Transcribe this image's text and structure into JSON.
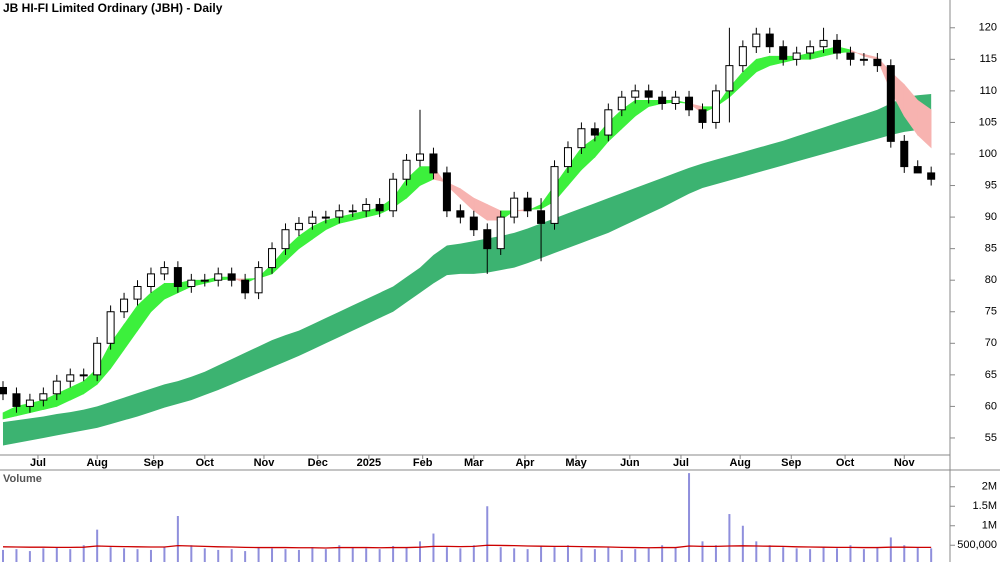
{
  "chart_data": [
    {
      "type": "candlestick",
      "title": "JB HI-FI Limited Ordinary (JBH) - Daily",
      "x": [
        0,
        5,
        10,
        15,
        20,
        25,
        30,
        35,
        40,
        45,
        50,
        55,
        60,
        65,
        70,
        75,
        80,
        85,
        90,
        95,
        100,
        105,
        110,
        115,
        120,
        125,
        130,
        135,
        140,
        145,
        150,
        155,
        160,
        165,
        170,
        175,
        180,
        185,
        190,
        195,
        200,
        205,
        210,
        215,
        220,
        225,
        230,
        235,
        240,
        245,
        250,
        255,
        260,
        265,
        270,
        275,
        280,
        285,
        290,
        295,
        300,
        305,
        310,
        315,
        320,
        325,
        330,
        335,
        340,
        345
      ],
      "open": [
        63,
        62,
        60,
        61,
        62,
        64,
        65,
        65,
        70,
        75,
        77,
        79,
        81,
        82,
        79,
        80,
        80,
        81,
        80,
        78,
        82,
        85,
        88,
        89,
        90,
        90,
        91,
        91,
        92,
        91,
        96,
        99,
        100,
        97,
        91,
        90,
        88,
        85,
        90,
        93,
        91,
        89,
        98,
        101,
        104,
        103,
        107,
        109,
        110,
        109,
        108,
        109,
        107,
        105,
        110,
        114,
        117,
        119,
        117,
        115,
        116,
        117,
        118,
        116,
        115,
        115,
        114,
        102,
        98,
        97
      ],
      "high": [
        64,
        63,
        62,
        63,
        65,
        66,
        66,
        71,
        76,
        78,
        80,
        82,
        83,
        83,
        81,
        81,
        82,
        82,
        81,
        83,
        86,
        89,
        90,
        91,
        91,
        92,
        92,
        93,
        93,
        97,
        100,
        107,
        101,
        98,
        92,
        91,
        89,
        91,
        94,
        94,
        93,
        99,
        102,
        105,
        105,
        108,
        110,
        111,
        111,
        110,
        110,
        110,
        108,
        111,
        120,
        118,
        120,
        120,
        118,
        117,
        118,
        120,
        119,
        117,
        116,
        116,
        115,
        103,
        99,
        98
      ],
      "low": [
        61,
        59,
        59,
        60,
        61,
        63,
        64,
        64,
        69,
        74,
        76,
        78,
        80,
        78,
        78,
        79,
        79,
        79,
        77,
        77,
        81,
        84,
        87,
        88,
        89,
        89,
        90,
        90,
        90,
        90,
        95,
        98,
        96,
        90,
        89,
        87,
        81,
        84,
        89,
        90,
        83,
        88,
        97,
        100,
        102,
        102,
        106,
        108,
        108,
        107,
        107,
        106,
        104,
        104,
        105,
        113,
        116,
        116,
        114,
        114,
        115,
        116,
        115,
        114,
        114,
        113,
        101,
        97,
        97,
        95
      ],
      "close": [
        62,
        60,
        61,
        62,
        64,
        65,
        65,
        70,
        75,
        77,
        79,
        81,
        82,
        79,
        80,
        80,
        81,
        80,
        78,
        82,
        85,
        88,
        89,
        90,
        90,
        91,
        91,
        92,
        91,
        96,
        99,
        100,
        97,
        91,
        90,
        88,
        85,
        90,
        93,
        91,
        89,
        98,
        101,
        104,
        103,
        107,
        109,
        110,
        109,
        108,
        109,
        107,
        105,
        110,
        114,
        117,
        119,
        117,
        115,
        116,
        117,
        118,
        116,
        115,
        115,
        114,
        102,
        98,
        97,
        96
      ],
      "up_color": "#ffffff",
      "down_color": "#000000",
      "fast_ribbon": {
        "short": [
          59,
          60,
          60.5,
          61,
          62,
          63,
          64,
          66,
          70,
          73,
          76,
          78,
          79.5,
          79.5,
          80,
          80,
          80.5,
          80.5,
          79.5,
          80.5,
          82.5,
          85,
          87,
          88.5,
          89.5,
          90,
          90.5,
          91,
          91.5,
          93,
          96,
          98,
          98,
          95,
          93,
          91,
          89.5,
          89.5,
          91,
          91,
          92,
          95,
          98,
          101,
          102.5,
          105,
          107,
          108.5,
          108.5,
          108.5,
          108.5,
          108,
          106.5,
          107.5,
          110.5,
          113,
          115,
          115.5,
          115.5,
          115.5,
          116,
          116.5,
          117,
          116.5,
          115.5,
          115,
          110,
          106,
          103,
          101
        ],
        "long": [
          58,
          58.5,
          59,
          59.5,
          60,
          61,
          62,
          63.5,
          66,
          69,
          72,
          75,
          77,
          78,
          79,
          79.5,
          80,
          80.2,
          80.2,
          80.3,
          81,
          83,
          85,
          86.5,
          88,
          89,
          89.5,
          90,
          90.5,
          91.5,
          93,
          95,
          96,
          95.5,
          94.5,
          93,
          92,
          91,
          91,
          91.2,
          91.3,
          92.5,
          95,
          97.5,
          99.5,
          102,
          104,
          106,
          107.5,
          108,
          108.2,
          108,
          107.5,
          107.5,
          109,
          111,
          113,
          114,
          114.5,
          115,
          115,
          115.5,
          116,
          116.2,
          115.8,
          115.3,
          113,
          111,
          108.5,
          107
        ],
        "up_color": "#3cf03c",
        "down_color": "#f7b3b0"
      },
      "slow_ribbon": {
        "upper": [
          57.5,
          57.8,
          58.1,
          58.4,
          58.8,
          59.1,
          59.5,
          60,
          60.7,
          61.4,
          62.1,
          62.8,
          63.5,
          64,
          64.7,
          65.5,
          66.5,
          67.5,
          68.5,
          69.5,
          70.5,
          71.3,
          72,
          73,
          74,
          75,
          76,
          77,
          78,
          79,
          80.5,
          82,
          84,
          85.5,
          85.8,
          86.2,
          86.6,
          87,
          87.5,
          88.2,
          89,
          89.8,
          90.6,
          91.4,
          92.2,
          93,
          93.8,
          94.6,
          95.4,
          96.2,
          97,
          97.8,
          98.5,
          99.1,
          99.7,
          100.3,
          100.9,
          101.5,
          102.1,
          102.8,
          103.5,
          104.2,
          104.9,
          105.6,
          106.3,
          107,
          108,
          109,
          109.3,
          109.5
        ],
        "lower": [
          53.8,
          54.2,
          54.6,
          55,
          55.4,
          55.8,
          56.2,
          56.6,
          57.2,
          57.8,
          58.4,
          59.1,
          59.8,
          60.4,
          61,
          61.8,
          62.6,
          63.5,
          64.4,
          65.3,
          66.2,
          67.1,
          68,
          69,
          70,
          71,
          72,
          73,
          74,
          75,
          76.5,
          78,
          79.5,
          80.8,
          81,
          81,
          81.2,
          81.6,
          82,
          82.7,
          83.5,
          84.3,
          85.1,
          85.9,
          86.7,
          87.5,
          88.5,
          89.5,
          90.5,
          91.5,
          92.6,
          93.7,
          94.6,
          95.2,
          95.8,
          96.4,
          97,
          97.6,
          98.2,
          98.8,
          99.4,
          100,
          100.6,
          101.2,
          101.8,
          102.4,
          103,
          103.5,
          103.8,
          104
        ],
        "color": "#3cb371"
      },
      "xlim": [
        -1.115,
        352
      ],
      "ylim": [
        52.3,
        124.4
      ],
      "xticks": [
        {
          "value": 13,
          "label": "Jul"
        },
        {
          "value": 35,
          "label": "Aug"
        },
        {
          "value": 56,
          "label": "Sep"
        },
        {
          "value": 75,
          "label": "Oct"
        },
        {
          "value": 97,
          "label": "Nov"
        },
        {
          "value": 117,
          "label": "Dec"
        },
        {
          "value": 136,
          "label": "2025"
        },
        {
          "value": 156,
          "label": "Feb"
        },
        {
          "value": 175,
          "label": "Mar"
        },
        {
          "value": 194,
          "label": "Apr"
        },
        {
          "value": 213,
          "label": "May"
        },
        {
          "value": 233,
          "label": "Jun"
        },
        {
          "value": 252,
          "label": "Jul"
        },
        {
          "value": 274,
          "label": "Aug"
        },
        {
          "value": 293,
          "label": "Sep"
        },
        {
          "value": 313,
          "label": "Oct"
        },
        {
          "value": 335,
          "label": "Nov"
        }
      ],
      "yticks": [
        55,
        60,
        65,
        70,
        75,
        80,
        85,
        90,
        95,
        100,
        105,
        110,
        115,
        120
      ]
    },
    {
      "type": "bar",
      "title": "Volume",
      "x": [
        0,
        5,
        10,
        15,
        20,
        25,
        30,
        35,
        40,
        45,
        50,
        55,
        60,
        65,
        70,
        75,
        80,
        85,
        90,
        95,
        100,
        105,
        110,
        115,
        120,
        125,
        130,
        135,
        140,
        145,
        150,
        155,
        160,
        165,
        170,
        175,
        180,
        185,
        190,
        195,
        200,
        205,
        210,
        215,
        220,
        225,
        230,
        235,
        240,
        245,
        250,
        255,
        260,
        265,
        270,
        275,
        280,
        285,
        290,
        295,
        300,
        305,
        310,
        315,
        320,
        325,
        330,
        335,
        340,
        345
      ],
      "values": [
        380000,
        400000,
        350000,
        420000,
        450000,
        400000,
        500000,
        900000,
        450000,
        420000,
        400000,
        380000,
        450000,
        1250000,
        500000,
        420000,
        380000,
        400000,
        350000,
        450000,
        420000,
        400000,
        380000,
        450000,
        400000,
        500000,
        450000,
        420000,
        400000,
        480000,
        450000,
        600000,
        800000,
        450000,
        420000,
        500000,
        1500000,
        450000,
        420000,
        400000,
        480000,
        450000,
        500000,
        420000,
        400000,
        450000,
        380000,
        400000,
        420000,
        500000,
        450000,
        2350000,
        600000,
        500000,
        1300000,
        1000000,
        600000,
        500000,
        450000,
        420000,
        400000,
        450000,
        420000,
        500000,
        400000,
        450000,
        700000,
        500000,
        450000,
        420000
      ],
      "color": "#8f8fdc",
      "average": [
        460000,
        455000,
        450000,
        450000,
        445000,
        445000,
        450000,
        480000,
        470000,
        465000,
        460000,
        455000,
        455000,
        490000,
        480000,
        470000,
        460000,
        455000,
        445000,
        440000,
        440000,
        440000,
        435000,
        435000,
        430000,
        440000,
        440000,
        440000,
        435000,
        440000,
        440000,
        450000,
        470000,
        470000,
        465000,
        470000,
        500000,
        495000,
        490000,
        480000,
        475000,
        470000,
        470000,
        465000,
        460000,
        455000,
        445000,
        440000,
        435000,
        440000,
        440000,
        480000,
        470000,
        470000,
        480000,
        485000,
        480000,
        475000,
        470000,
        460000,
        455000,
        450000,
        445000,
        445000,
        440000,
        440000,
        450000,
        450000,
        445000,
        445000
      ],
      "average_color": "#cc0000",
      "xlim": [
        -1.115,
        352
      ],
      "ylim": [
        70000,
        2430000
      ],
      "yticks": [
        {
          "value": 500000,
          "label": "500,000"
        },
        {
          "value": 1000000,
          "label": "1M"
        },
        {
          "value": 1500000,
          "label": "1.5M"
        },
        {
          "value": 2000000,
          "label": "2M"
        }
      ]
    }
  ]
}
